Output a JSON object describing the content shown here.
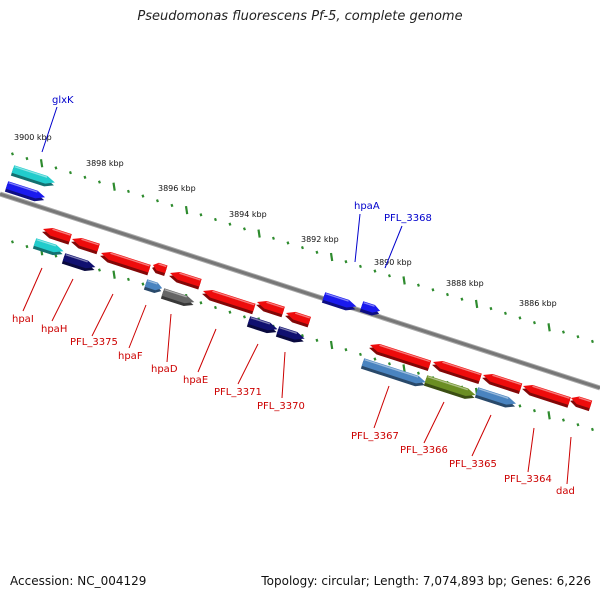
{
  "header": {
    "title": "Pseudomonas fluorescens Pf-5, complete genome"
  },
  "footer": {
    "accession": "Accession: NC_004129",
    "topology": "Topology: circular; Length: 7,074,893 bp; Genes: 6,226"
  },
  "colors": {
    "backbone": "#777777",
    "ticks": "#2e8b2e",
    "label_plus": "#0000cc",
    "label_minus": "#cc0000",
    "cyan": "#22cccc",
    "blue": "#1a1aee",
    "navy": "#101070",
    "red": "#ee0c0c",
    "steel": "#4a84c0",
    "gray": "#666666",
    "olive": "#6b8e23",
    "kbp_text": "#111111"
  },
  "scale": {
    "labels": [
      "3900 kbp",
      "3898 kbp",
      "3896 kbp",
      "3894 kbp",
      "3892 kbp",
      "3890 kbp",
      "3888 kbp",
      "3886 kbp"
    ]
  },
  "genes": {
    "plus_strand": [
      {
        "name": "glxK",
        "color": "cyan"
      },
      {
        "name": "glxK",
        "color": "blue"
      },
      {
        "name": "hpaA",
        "color": "blue"
      },
      {
        "name": "PFL_3368",
        "color": "blue"
      }
    ],
    "minus_strand": [
      {
        "name": "hpaI",
        "color": "cyan"
      },
      {
        "name": "hpaI",
        "color": "red"
      },
      {
        "name": "hpaH",
        "color": "navy"
      },
      {
        "name": "hpaH",
        "color": "red"
      },
      {
        "name": "PFL_3375",
        "color": "red"
      },
      {
        "name": "hpaF",
        "color": "red"
      },
      {
        "name": "hpaF",
        "color": "steel"
      },
      {
        "name": "hpaD",
        "color": "red"
      },
      {
        "name": "hpaD",
        "color": "gray"
      },
      {
        "name": "hpaE",
        "color": "red"
      },
      {
        "name": "PFL_3371",
        "color": "navy"
      },
      {
        "name": "PFL_3371",
        "color": "red"
      },
      {
        "name": "PFL_3370",
        "color": "navy"
      },
      {
        "name": "PFL_3370",
        "color": "red"
      },
      {
        "name": "PFL_3367",
        "color": "red"
      },
      {
        "name": "PFL_3367",
        "color": "steel"
      },
      {
        "name": "PFL_3366",
        "color": "red"
      },
      {
        "name": "PFL_3366",
        "color": "olive"
      },
      {
        "name": "PFL_3365",
        "color": "red"
      },
      {
        "name": "PFL_3365",
        "color": "steel"
      },
      {
        "name": "PFL_3364",
        "color": "red"
      },
      {
        "name": "dad",
        "color": "red"
      }
    ]
  },
  "gene_labels": [
    {
      "text": "glxK",
      "strand": "plus"
    },
    {
      "text": "hpaA",
      "strand": "plus"
    },
    {
      "text": "PFL_3368",
      "strand": "plus"
    },
    {
      "text": "hpaI",
      "strand": "minus"
    },
    {
      "text": "hpaH",
      "strand": "minus"
    },
    {
      "text": "PFL_3375",
      "strand": "minus"
    },
    {
      "text": "hpaF",
      "strand": "minus"
    },
    {
      "text": "hpaD",
      "strand": "minus"
    },
    {
      "text": "hpaE",
      "strand": "minus"
    },
    {
      "text": "PFL_3371",
      "strand": "minus"
    },
    {
      "text": "PFL_3370",
      "strand": "minus"
    },
    {
      "text": "PFL_3367",
      "strand": "minus"
    },
    {
      "text": "PFL_3366",
      "strand": "minus"
    },
    {
      "text": "PFL_3365",
      "strand": "minus"
    },
    {
      "text": "PFL_3364",
      "strand": "minus"
    },
    {
      "text": "dad",
      "strand": "minus"
    }
  ]
}
